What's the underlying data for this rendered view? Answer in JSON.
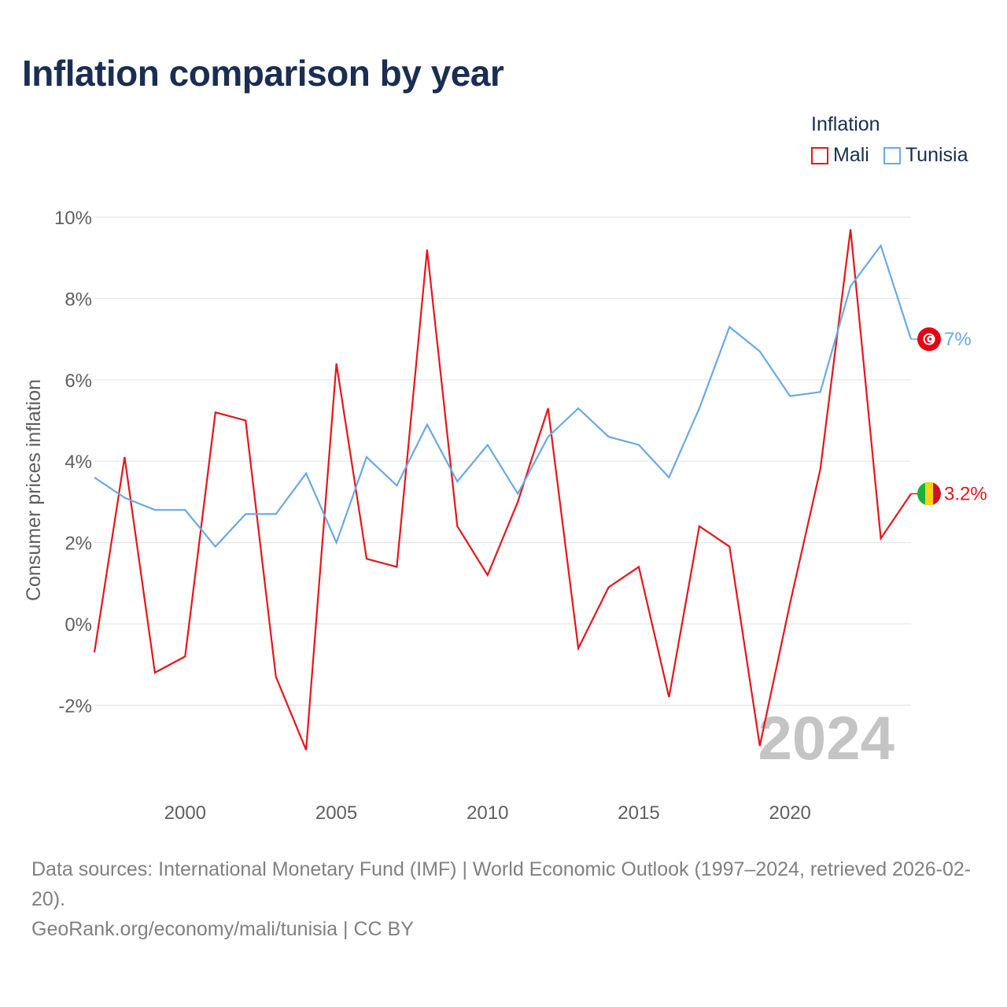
{
  "title": "Inflation comparison by year",
  "legend": {
    "title": "Inflation",
    "items": [
      {
        "name": "Mali",
        "color": "#e8141c"
      },
      {
        "name": "Tunisia",
        "color": "#6aa9e4"
      }
    ]
  },
  "chart_data": {
    "type": "line",
    "title": "Inflation comparison by year",
    "ylabel": "Consumer prices inflation",
    "xlabel": "",
    "x": [
      1997,
      1998,
      1999,
      2000,
      2001,
      2002,
      2003,
      2004,
      2005,
      2006,
      2007,
      2008,
      2009,
      2010,
      2011,
      2012,
      2013,
      2014,
      2015,
      2016,
      2017,
      2018,
      2019,
      2020,
      2021,
      2022,
      2023,
      2024
    ],
    "xlim": [
      1997,
      2024
    ],
    "ylim": [
      -3.8,
      10
    ],
    "y_ticks": [
      -2,
      0,
      2,
      4,
      6,
      8,
      10
    ],
    "y_tick_labels": [
      "-2%",
      "0%",
      "2%",
      "4%",
      "6%",
      "8%",
      "10%"
    ],
    "x_ticks": [
      2000,
      2005,
      2010,
      2015,
      2020
    ],
    "x_tick_labels": [
      "2000",
      "2005",
      "2010",
      "2015",
      "2020"
    ],
    "grid": true,
    "year_watermark": "2024",
    "series": [
      {
        "name": "Mali",
        "color": "#e8141c",
        "values": [
          -0.7,
          4.1,
          -1.2,
          -0.8,
          5.2,
          5.0,
          -1.3,
          -3.1,
          6.4,
          1.6,
          1.4,
          9.2,
          2.4,
          1.2,
          3.0,
          5.3,
          -0.6,
          0.9,
          1.4,
          -1.8,
          2.4,
          1.9,
          -3.0,
          0.5,
          3.8,
          9.7,
          2.1,
          3.2
        ],
        "end_label": "3.2%",
        "flag": "mali-flag"
      },
      {
        "name": "Tunisia",
        "color": "#6aa9e4",
        "values": [
          3.6,
          3.1,
          2.8,
          2.8,
          1.9,
          2.7,
          2.7,
          3.7,
          2.0,
          4.1,
          3.4,
          4.9,
          3.5,
          4.4,
          3.2,
          4.6,
          5.3,
          4.6,
          4.4,
          3.6,
          5.3,
          7.3,
          6.7,
          5.6,
          5.7,
          8.3,
          9.3,
          7.0
        ],
        "end_label": "7%",
        "flag": "tunisia-flag"
      }
    ]
  },
  "footer": {
    "sources": "Data sources: International Monetary Fund (IMF) | World Economic Outlook (1997–2024, retrieved 2026-02-20).",
    "credit": "GeoRank.org/economy/mali/tunisia | CC BY"
  }
}
